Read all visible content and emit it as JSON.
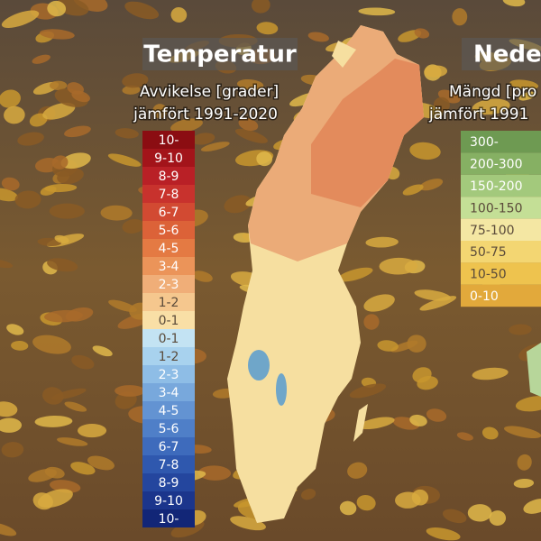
{
  "temperature": {
    "title": "Temperatur",
    "subtitle": [
      "Avvikelse [grader]",
      "jämfört 1991-2020"
    ],
    "legend": [
      {
        "label": "10-",
        "color": "#8b0d12"
      },
      {
        "label": "9-10",
        "color": "#a3141a"
      },
      {
        "label": "8-9",
        "color": "#b92026"
      },
      {
        "label": "7-8",
        "color": "#c8322d"
      },
      {
        "label": "6-7",
        "color": "#d24a32"
      },
      {
        "label": "5-6",
        "color": "#dc6238"
      },
      {
        "label": "4-5",
        "color": "#e47a43"
      },
      {
        "label": "3-4",
        "color": "#eb9459"
      },
      {
        "label": "2-3",
        "color": "#f0ae78"
      },
      {
        "label": "1-2",
        "color": "#f5c78e"
      },
      {
        "label": "0-1",
        "color": "#f9dfa6"
      },
      {
        "label": "0-1",
        "color": "#c3e3f3"
      },
      {
        "label": "1-2",
        "color": "#a8d2ee"
      },
      {
        "label": "2-3",
        "color": "#8ebde6"
      },
      {
        "label": "3-4",
        "color": "#78a8dc"
      },
      {
        "label": "4-5",
        "color": "#6393d2"
      },
      {
        "label": "5-6",
        "color": "#4f7fc8"
      },
      {
        "label": "6-7",
        "color": "#3e6bbc"
      },
      {
        "label": "7-8",
        "color": "#2f58ae"
      },
      {
        "label": "8-9",
        "color": "#24469e"
      },
      {
        "label": "9-10",
        "color": "#1b358c"
      },
      {
        "label": "10-",
        "color": "#122677"
      }
    ]
  },
  "precipitation": {
    "title": "Neder",
    "subtitle": [
      "Mängd [pro",
      "jämfört 1991"
    ],
    "legend": [
      {
        "label": "300-",
        "color": "#6e9a52"
      },
      {
        "label": "200-300",
        "color": "#86b063"
      },
      {
        "label": "150-200",
        "color": "#a3c97c"
      },
      {
        "label": "100-150",
        "color": "#c4df96"
      },
      {
        "label": "75-100",
        "color": "#f4e7a3"
      },
      {
        "label": "50-75",
        "color": "#f3d672"
      },
      {
        "label": "10-50",
        "color": "#eec34e"
      },
      {
        "label": "0-10",
        "color": "#e2a93b"
      }
    ]
  }
}
